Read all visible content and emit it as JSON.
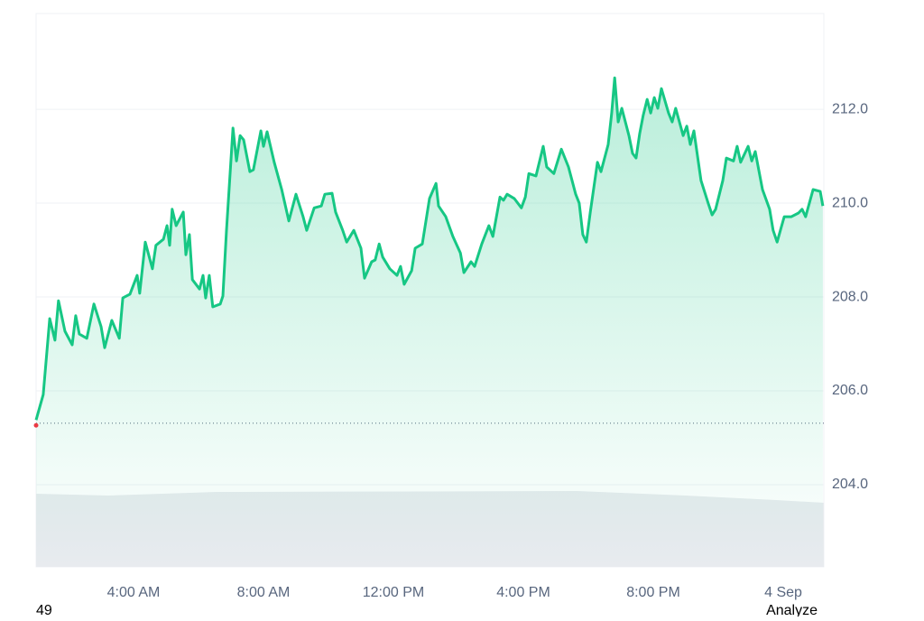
{
  "chart_data": {
    "type": "area-line",
    "x": [
      1.0,
      1.22,
      1.42,
      1.58,
      1.69,
      1.89,
      2.11,
      2.22,
      2.33,
      2.56,
      2.78,
      3.0,
      3.11,
      3.33,
      3.56,
      3.67,
      3.89,
      4.11,
      4.19,
      4.36,
      4.58,
      4.69,
      4.92,
      5.03,
      5.11,
      5.19,
      5.31,
      5.53,
      5.61,
      5.72,
      5.81,
      6.03,
      6.14,
      6.22,
      6.33,
      6.44,
      6.67,
      6.75,
      6.86,
      7.06,
      7.17,
      7.28,
      7.39,
      7.58,
      7.69,
      7.92,
      8.0,
      8.11,
      8.33,
      8.56,
      8.78,
      9.0,
      9.22,
      9.33,
      9.56,
      9.78,
      9.89,
      10.11,
      10.22,
      10.44,
      10.56,
      10.78,
      11.0,
      11.11,
      11.33,
      11.44,
      11.56,
      11.67,
      11.89,
      12.11,
      12.22,
      12.33,
      12.56,
      12.67,
      12.89,
      13.11,
      13.31,
      13.39,
      13.61,
      13.83,
      14.06,
      14.17,
      14.39,
      14.5,
      14.72,
      14.94,
      15.06,
      15.28,
      15.39,
      15.5,
      15.72,
      15.94,
      16.06,
      16.17,
      16.39,
      16.61,
      16.72,
      16.94,
      17.17,
      17.39,
      17.61,
      17.72,
      17.83,
      17.94,
      18.06,
      18.28,
      18.39,
      18.61,
      18.72,
      18.81,
      18.92,
      19.03,
      19.25,
      19.36,
      19.47,
      19.58,
      19.69,
      19.81,
      19.92,
      20.03,
      20.14,
      20.25,
      20.47,
      20.58,
      20.69,
      20.92,
      21.03,
      21.14,
      21.25,
      21.47,
      21.69,
      21.81,
      21.92,
      22.14,
      22.25,
      22.47,
      22.58,
      22.69,
      22.92,
      23.03,
      23.14,
      23.36,
      23.58,
      23.69,
      23.81,
      24.03,
      24.25,
      24.47,
      24.58,
      24.69,
      24.92,
      25.14,
      25.22
    ],
    "values": [
      205.38,
      205.92,
      207.54,
      207.08,
      207.92,
      207.27,
      206.98,
      207.6,
      207.21,
      207.12,
      207.85,
      207.37,
      206.92,
      207.5,
      207.12,
      207.98,
      208.06,
      208.46,
      208.08,
      209.17,
      208.6,
      209.1,
      209.23,
      209.52,
      209.1,
      209.87,
      209.52,
      209.81,
      208.9,
      209.33,
      208.37,
      208.17,
      208.46,
      207.98,
      208.46,
      207.79,
      207.85,
      208.02,
      209.42,
      211.6,
      210.9,
      211.44,
      211.35,
      210.67,
      210.71,
      211.54,
      211.21,
      211.52,
      210.87,
      210.29,
      209.62,
      210.19,
      209.71,
      209.42,
      209.9,
      209.94,
      210.19,
      210.21,
      209.81,
      209.42,
      209.17,
      209.42,
      209.04,
      208.4,
      208.75,
      208.79,
      209.13,
      208.85,
      208.6,
      208.46,
      208.65,
      208.27,
      208.56,
      209.04,
      209.13,
      210.1,
      210.42,
      209.94,
      209.71,
      209.29,
      208.94,
      208.52,
      208.75,
      208.65,
      209.13,
      209.52,
      209.29,
      210.13,
      210.06,
      210.19,
      210.1,
      209.9,
      210.13,
      210.63,
      210.58,
      211.21,
      210.77,
      210.63,
      211.15,
      210.77,
      210.19,
      210.0,
      209.33,
      209.17,
      209.81,
      210.87,
      210.67,
      211.25,
      211.92,
      212.67,
      211.73,
      212.02,
      211.44,
      211.06,
      210.96,
      211.48,
      211.87,
      212.21,
      211.92,
      212.25,
      212.02,
      212.44,
      211.92,
      211.73,
      212.02,
      211.44,
      211.64,
      211.25,
      211.54,
      210.48,
      210.0,
      209.75,
      209.87,
      210.48,
      210.96,
      210.9,
      211.21,
      210.87,
      211.21,
      210.9,
      211.1,
      210.29,
      209.87,
      209.42,
      209.17,
      209.71,
      209.71,
      209.79,
      209.87,
      209.71,
      210.29,
      210.25,
      209.94
    ],
    "color": "#16c784",
    "start_marker_color": "#ea3943",
    "baseline": 205.31,
    "xlim": [
      1,
      25.25
    ],
    "xticks": [
      {
        "value": 4,
        "label": "4:00 AM"
      },
      {
        "value": 8,
        "label": "8:00 AM"
      },
      {
        "value": 12,
        "label": "12:00 PM"
      },
      {
        "value": 16,
        "label": "4:00 PM"
      },
      {
        "value": 20,
        "label": "8:00 PM"
      },
      {
        "value": 24,
        "label": "4 Sep"
      }
    ],
    "ylim": [
      202.25,
      214.04
    ],
    "yticks": [
      {
        "value": 204,
        "label": "204.0"
      },
      {
        "value": 206,
        "label": "206.0"
      },
      {
        "value": 208,
        "label": "208.0"
      },
      {
        "value": 210,
        "label": "210.0"
      },
      {
        "value": 212,
        "label": "212.0"
      }
    ],
    "grid": true
  },
  "footer": {
    "left": "49",
    "right": "Analyze"
  }
}
